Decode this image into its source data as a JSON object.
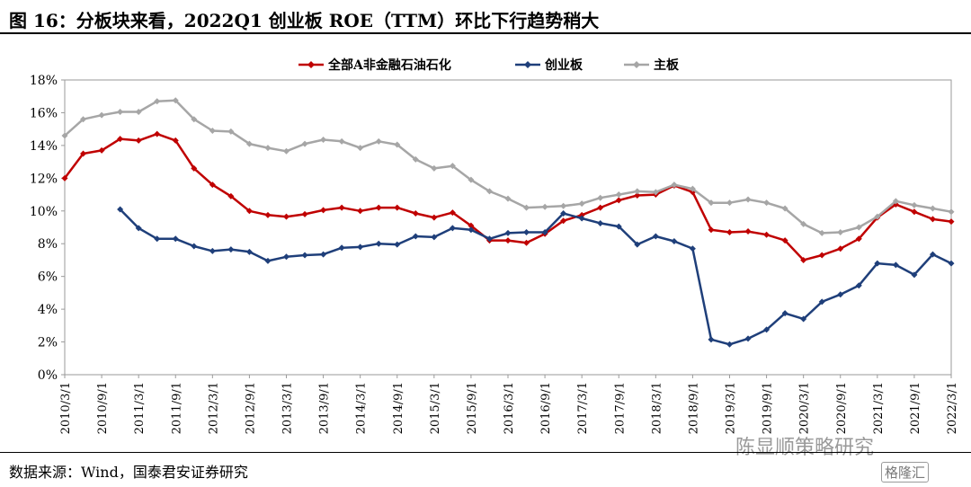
{
  "figure": {
    "title": "图 16：分板块来看，2022Q1 创业板 ROE（TTM）环比下行趋势稍大",
    "source": "数据来源：Wind，国泰君安证券研究",
    "watermark_text": "陈显顺策略研究",
    "watermark_logo": "格隆汇"
  },
  "chart_data": {
    "type": "line",
    "x": [
      "2010/3/1",
      "2010/6/1",
      "2010/9/1",
      "2010/12/1",
      "2011/3/1",
      "2011/6/1",
      "2011/9/1",
      "2011/12/1",
      "2012/3/1",
      "2012/6/1",
      "2012/9/1",
      "2012/12/1",
      "2013/3/1",
      "2013/6/1",
      "2013/9/1",
      "2013/12/1",
      "2014/3/1",
      "2014/6/1",
      "2014/9/1",
      "2014/12/1",
      "2015/3/1",
      "2015/6/1",
      "2015/9/1",
      "2015/12/1",
      "2016/3/1",
      "2016/6/1",
      "2016/9/1",
      "2016/12/1",
      "2017/3/1",
      "2017/6/1",
      "2017/9/1",
      "2017/12/1",
      "2018/3/1",
      "2018/6/1",
      "2018/9/1",
      "2018/12/1",
      "2019/3/1",
      "2019/6/1",
      "2019/9/1",
      "2019/12/1",
      "2020/3/1",
      "2020/6/1",
      "2020/9/1",
      "2020/12/1",
      "2021/3/1",
      "2021/6/1",
      "2021/9/1",
      "2021/12/1",
      "2022/3/1"
    ],
    "x_tick_labels": [
      "2010/3/1",
      "2010/9/1",
      "2011/3/1",
      "2011/9/1",
      "2012/3/1",
      "2012/9/1",
      "2013/3/1",
      "2013/9/1",
      "2014/3/1",
      "2014/9/1",
      "2015/3/1",
      "2015/9/1",
      "2016/3/1",
      "2016/9/1",
      "2017/3/1",
      "2017/9/1",
      "2018/3/1",
      "2018/9/1",
      "2019/3/1",
      "2019/9/1",
      "2020/3/1",
      "2020/9/1",
      "2021/3/1",
      "2021/9/1",
      "2022/3/1"
    ],
    "y_ticks": [
      0,
      2,
      4,
      6,
      8,
      10,
      12,
      14,
      16,
      18
    ],
    "y_tick_labels": [
      "0%",
      "2%",
      "4%",
      "6%",
      "8%",
      "10%",
      "12%",
      "14%",
      "16%",
      "18%"
    ],
    "ylim": [
      0,
      18
    ],
    "grid": false,
    "legend_position": "top-center",
    "series": [
      {
        "name": "全部A非金融石油石化",
        "color": "#c00000",
        "marker": "diamond",
        "values": [
          12.0,
          13.5,
          13.7,
          14.4,
          14.3,
          14.7,
          14.3,
          12.6,
          11.6,
          10.9,
          10.0,
          9.75,
          9.65,
          9.8,
          10.05,
          10.2,
          10.0,
          10.2,
          10.2,
          9.85,
          9.6,
          9.9,
          9.1,
          8.2,
          8.2,
          8.05,
          8.6,
          9.4,
          9.75,
          10.2,
          10.65,
          10.95,
          11.0,
          11.55,
          11.15,
          8.85,
          8.7,
          8.75,
          8.55,
          8.2,
          7.0,
          7.3,
          7.7,
          8.3,
          9.6,
          10.4,
          9.95,
          9.5,
          9.35
        ]
      },
      {
        "name": "创业板",
        "color": "#1f3f7a",
        "marker": "diamond",
        "values": [
          null,
          null,
          null,
          10.1,
          8.95,
          8.3,
          8.3,
          7.85,
          7.55,
          7.65,
          7.5,
          6.95,
          7.2,
          7.3,
          7.35,
          7.75,
          7.8,
          8.0,
          7.95,
          8.45,
          8.4,
          8.95,
          8.85,
          8.3,
          8.65,
          8.7,
          8.7,
          9.85,
          9.55,
          9.25,
          9.05,
          7.95,
          8.45,
          8.15,
          7.7,
          2.15,
          1.85,
          2.2,
          2.75,
          3.75,
          3.4,
          4.45,
          4.9,
          5.45,
          6.8,
          6.7,
          6.1,
          7.35,
          6.8
        ]
      },
      {
        "name": "主板",
        "color": "#a6a6a6",
        "marker": "diamond",
        "values": [
          14.6,
          15.6,
          15.85,
          16.05,
          16.05,
          16.7,
          16.75,
          15.6,
          14.9,
          14.85,
          14.1,
          13.85,
          13.65,
          14.1,
          14.35,
          14.25,
          13.85,
          14.25,
          14.05,
          13.15,
          12.6,
          12.75,
          11.9,
          11.2,
          10.75,
          10.2,
          10.25,
          10.3,
          10.45,
          10.8,
          11.0,
          11.2,
          11.15,
          11.6,
          11.35,
          10.5,
          10.5,
          10.7,
          10.5,
          10.15,
          9.2,
          8.65,
          8.7,
          9.0,
          9.65,
          10.6,
          10.35,
          10.15,
          9.95
        ]
      }
    ]
  }
}
